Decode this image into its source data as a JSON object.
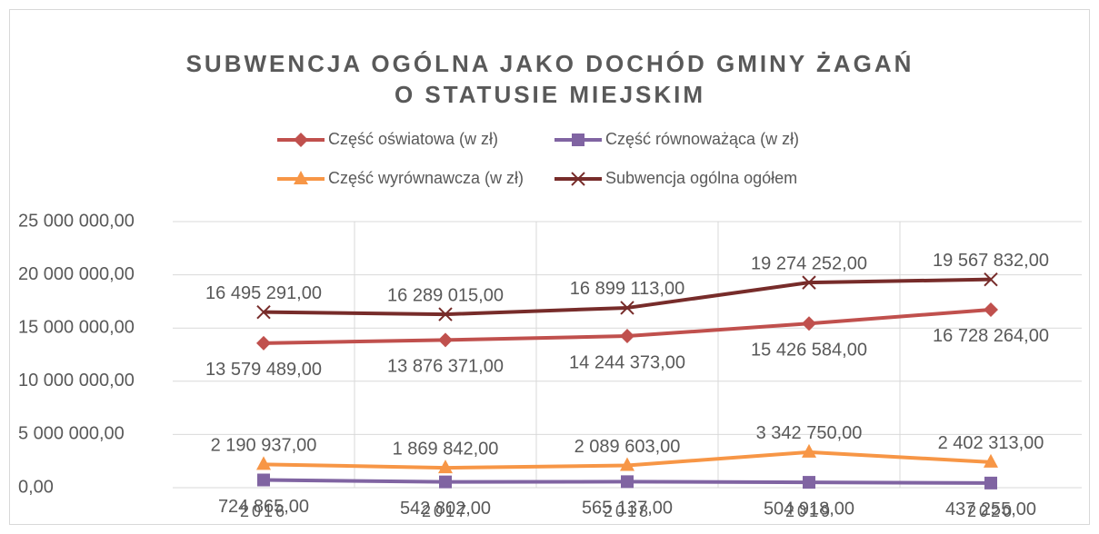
{
  "chart_data": {
    "type": "line",
    "title": [
      "SUBWENCJA OGÓLNA JAKO DOCHÓD GMINY ŻAGAŃ",
      "O STATUSIE MIEJSKIM"
    ],
    "categories": [
      "2016",
      "2017",
      "2018",
      "2019",
      "2020"
    ],
    "ylim": [
      0,
      25000000
    ],
    "yticks": [
      {
        "value": 0,
        "label": "0,00"
      },
      {
        "value": 5000000,
        "label": "5 000 000,00"
      },
      {
        "value": 10000000,
        "label": "10 000 000,00"
      },
      {
        "value": 15000000,
        "label": "15 000 000,00"
      },
      {
        "value": 20000000,
        "label": "20 000 000,00"
      },
      {
        "value": 25000000,
        "label": "25 000 000,00"
      }
    ],
    "grid": true,
    "legend": "top",
    "series": [
      {
        "name": "Część oświatowa (w zł)",
        "color": "#c0504d",
        "marker": "diamond",
        "values": [
          13579489,
          13876371,
          14244373,
          15426584,
          16728264
        ],
        "value_labels": [
          "13 579 489,00",
          "13 876 371,00",
          "14 244 373,00",
          "15 426 584,00",
          "16 728 264,00"
        ]
      },
      {
        "name": "Część równoważąca (w zł)",
        "color": "#8064a2",
        "marker": "square",
        "values": [
          724865,
          542802,
          565137,
          504918,
          437255
        ],
        "value_labels": [
          "724 865,00",
          "542 802,00",
          "565 137,00",
          "504 918,00",
          "437 255,00"
        ]
      },
      {
        "name": "Część wyrównawcza (w zł)",
        "color": "#f79646",
        "marker": "triangle",
        "values": [
          2190937,
          1869842,
          2089603,
          3342750,
          2402313
        ],
        "value_labels": [
          "2 190 937,00",
          "1 869 842,00",
          "2 089 603,00",
          "3 342 750,00",
          "2 402 313,00"
        ]
      },
      {
        "name": "Subwencja ogólna ogółem",
        "color": "#772c2a",
        "marker": "x",
        "values": [
          16495291,
          16289015,
          16899113,
          19274252,
          19567832
        ],
        "value_labels": [
          "16 495 291,00",
          "16 289 015,00",
          "16 899 113,00",
          "19 274 252,00",
          "19 567 832,00"
        ]
      }
    ]
  }
}
